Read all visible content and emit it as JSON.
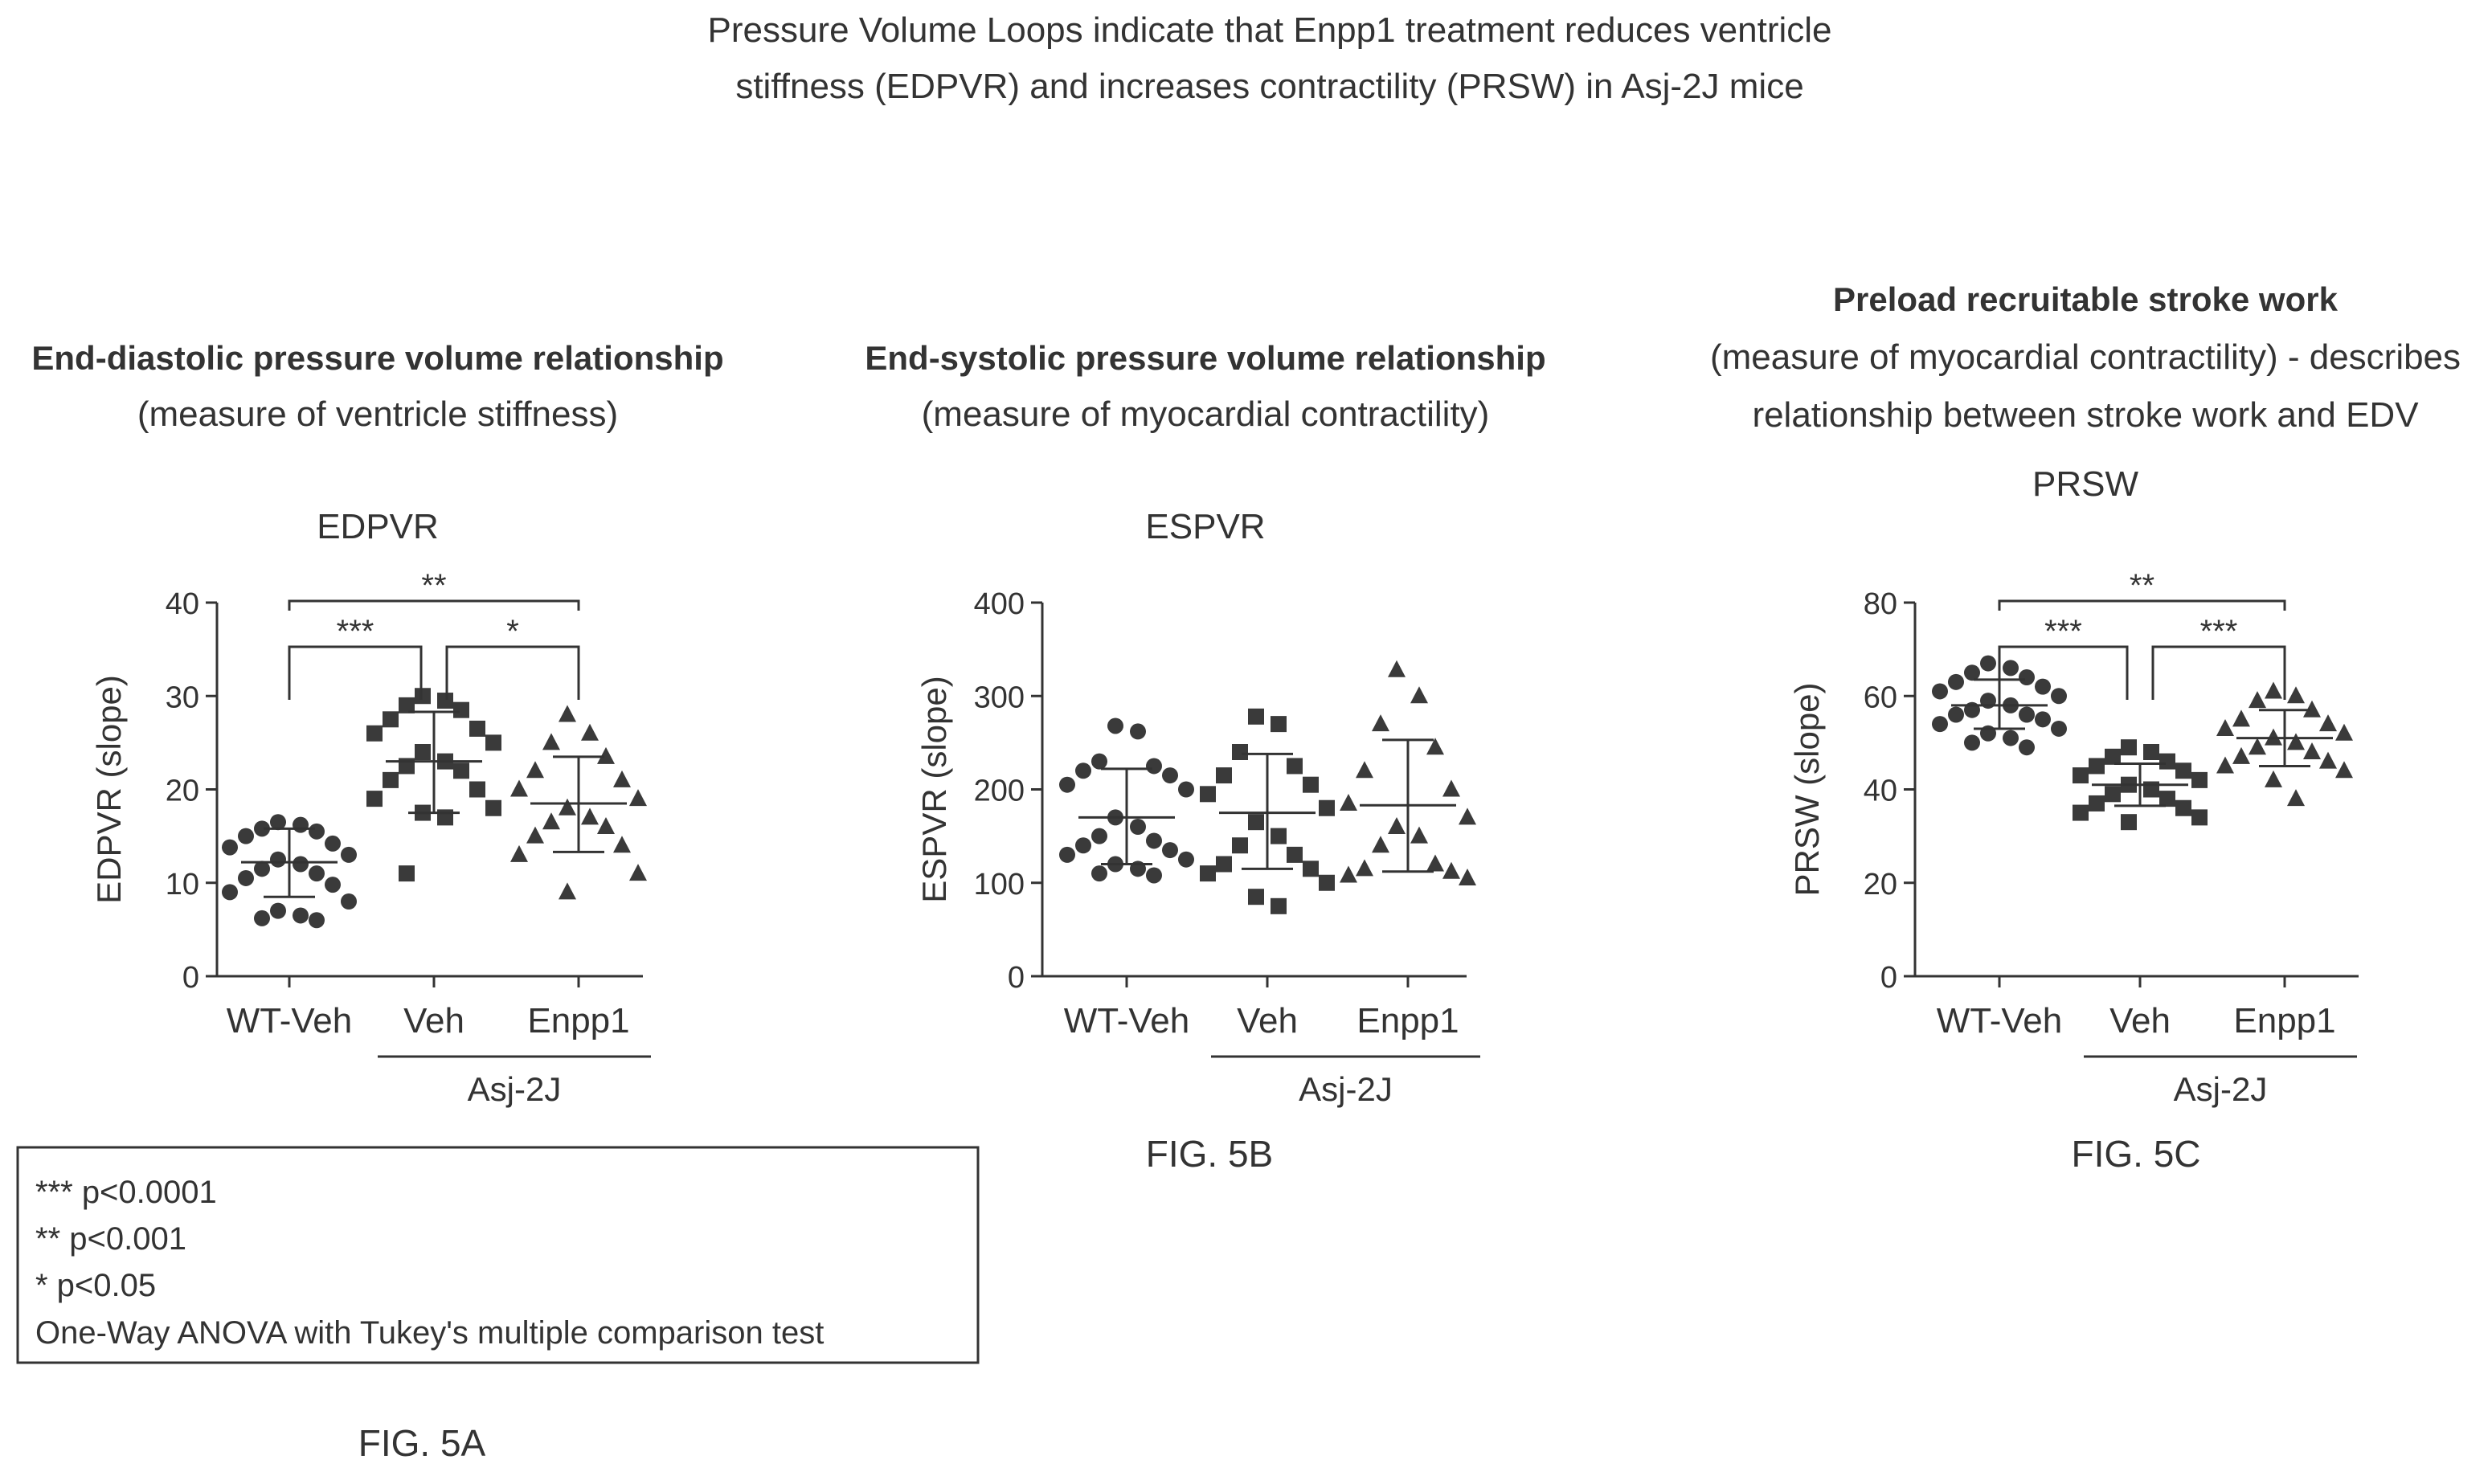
{
  "page_title_lines": [
    "Pressure Volume Loops indicate that Enpp1 treatment reduces ventricle",
    "stiffness (EDPVR) and increases contractility (PRSW) in Asj-2J mice"
  ],
  "legend_box": {
    "lines": [
      "*** p<0.0001",
      "** p<0.001",
      "* p<0.05",
      "One-Way ANOVA with Tukey's multiple comparison test"
    ]
  },
  "group_label": "Asj-2J",
  "chart_data": [
    {
      "type": "scatter",
      "figure_label": "FIG. 5A",
      "heading_bold": "End-diastolic pressure volume relationship",
      "heading_sub": [
        "(measure of ventricle stiffness)"
      ],
      "title": "EDPVR",
      "ylabel": "EDPVR (slope)",
      "ylim": [
        0,
        40
      ],
      "yticks": [
        0,
        10,
        20,
        30,
        40
      ],
      "categories": [
        "WT-Veh",
        "Veh",
        "Enpp1"
      ],
      "group_label": "Asj-2J",
      "marker_shapes": [
        "circle",
        "square",
        "triangle"
      ],
      "summary": [
        {
          "mean": 12.2,
          "sd_low": 8.5,
          "sd_high": 15.8
        },
        {
          "mean": 23.0,
          "sd_low": 17.5,
          "sd_high": 28.3
        },
        {
          "mean": 18.5,
          "sd_low": 13.3,
          "sd_high": 23.5
        }
      ],
      "points": [
        [
          16.5,
          16.2,
          15.8,
          15.5,
          15.0,
          14.2,
          13.8,
          13.0,
          12.5,
          12.0,
          11.5,
          11.0,
          10.5,
          9.8,
          9.0,
          8.0,
          7.0,
          6.5,
          6.2,
          6.0
        ],
        [
          30.0,
          29.5,
          29.0,
          28.5,
          27.5,
          26.5,
          26.0,
          25.0,
          24.0,
          23.0,
          22.5,
          22.0,
          21.0,
          20.0,
          19.0,
          18.0,
          17.5,
          17.0,
          11.0
        ],
        [
          28.0,
          26.0,
          25.0,
          23.5,
          22.0,
          21.0,
          20.0,
          19.0,
          18.0,
          17.0,
          16.5,
          16.0,
          15.0,
          14.0,
          13.0,
          11.0,
          9.0
        ]
      ],
      "significance": [
        {
          "from": 0,
          "to": 2,
          "level": 3,
          "stars": "**"
        },
        {
          "from": 0,
          "to": 1,
          "level": 2,
          "stars": "***"
        },
        {
          "from": 1,
          "to": 2,
          "level": 2,
          "stars": "*"
        }
      ]
    },
    {
      "type": "scatter",
      "figure_label": "FIG. 5B",
      "heading_bold": "End-systolic pressure volume relationship",
      "heading_sub": [
        "(measure of myocardial contractility)"
      ],
      "title": "ESPVR",
      "ylabel": "ESPVR (slope)",
      "ylim": [
        0,
        400
      ],
      "yticks": [
        0,
        100,
        200,
        300,
        400
      ],
      "categories": [
        "WT-Veh",
        "Veh",
        "Enpp1"
      ],
      "group_label": "Asj-2J",
      "marker_shapes": [
        "circle",
        "square",
        "triangle"
      ],
      "summary": [
        {
          "mean": 170,
          "sd_low": 120,
          "sd_high": 222
        },
        {
          "mean": 175,
          "sd_low": 115,
          "sd_high": 238
        },
        {
          "mean": 183,
          "sd_low": 112,
          "sd_high": 253
        }
      ],
      "points": [
        [
          268,
          262,
          230,
          225,
          220,
          215,
          205,
          200,
          170,
          160,
          150,
          145,
          140,
          135,
          130,
          125,
          120,
          115,
          110,
          108
        ],
        [
          278,
          270,
          240,
          225,
          215,
          205,
          195,
          180,
          165,
          150,
          140,
          130,
          120,
          115,
          110,
          100,
          85,
          75
        ],
        [
          328,
          300,
          270,
          245,
          220,
          200,
          185,
          170,
          160,
          150,
          140,
          120,
          115,
          112,
          108,
          105
        ]
      ],
      "significance": []
    },
    {
      "type": "scatter",
      "figure_label": "FIG. 5C",
      "heading_bold": "Preload recruitable stroke work",
      "heading_sub": [
        "(measure of myocardial contractility) - describes",
        "relationship between stroke work and EDV"
      ],
      "title": "PRSW",
      "ylabel": "PRSW (slope)",
      "ylim": [
        0,
        80
      ],
      "yticks": [
        0,
        20,
        40,
        60,
        80
      ],
      "categories": [
        "WT-Veh",
        "Veh",
        "Enpp1"
      ],
      "group_label": "Asj-2J",
      "marker_shapes": [
        "circle",
        "square",
        "triangle"
      ],
      "summary": [
        {
          "mean": 58.0,
          "sd_low": 53.0,
          "sd_high": 63.5
        },
        {
          "mean": 41.0,
          "sd_low": 36.5,
          "sd_high": 45.5
        },
        {
          "mean": 51.0,
          "sd_low": 45.0,
          "sd_high": 57.0
        }
      ],
      "points": [
        [
          67,
          66,
          65,
          64,
          63,
          62,
          61,
          60,
          59,
          58,
          57,
          56,
          56,
          55,
          54,
          53,
          52,
          51,
          50,
          49
        ],
        [
          49,
          48,
          47,
          46,
          45,
          44,
          43,
          42,
          41,
          40,
          39,
          38,
          37,
          36,
          35,
          34,
          33
        ],
        [
          61,
          60,
          59,
          57,
          55,
          54,
          53,
          52,
          51,
          50,
          49,
          48,
          47,
          46,
          45,
          44,
          42,
          38
        ]
      ],
      "significance": [
        {
          "from": 0,
          "to": 2,
          "level": 3,
          "stars": "**"
        },
        {
          "from": 0,
          "to": 1,
          "level": 2,
          "stars": "***"
        },
        {
          "from": 1,
          "to": 2,
          "level": 2,
          "stars": "***"
        }
      ]
    }
  ]
}
